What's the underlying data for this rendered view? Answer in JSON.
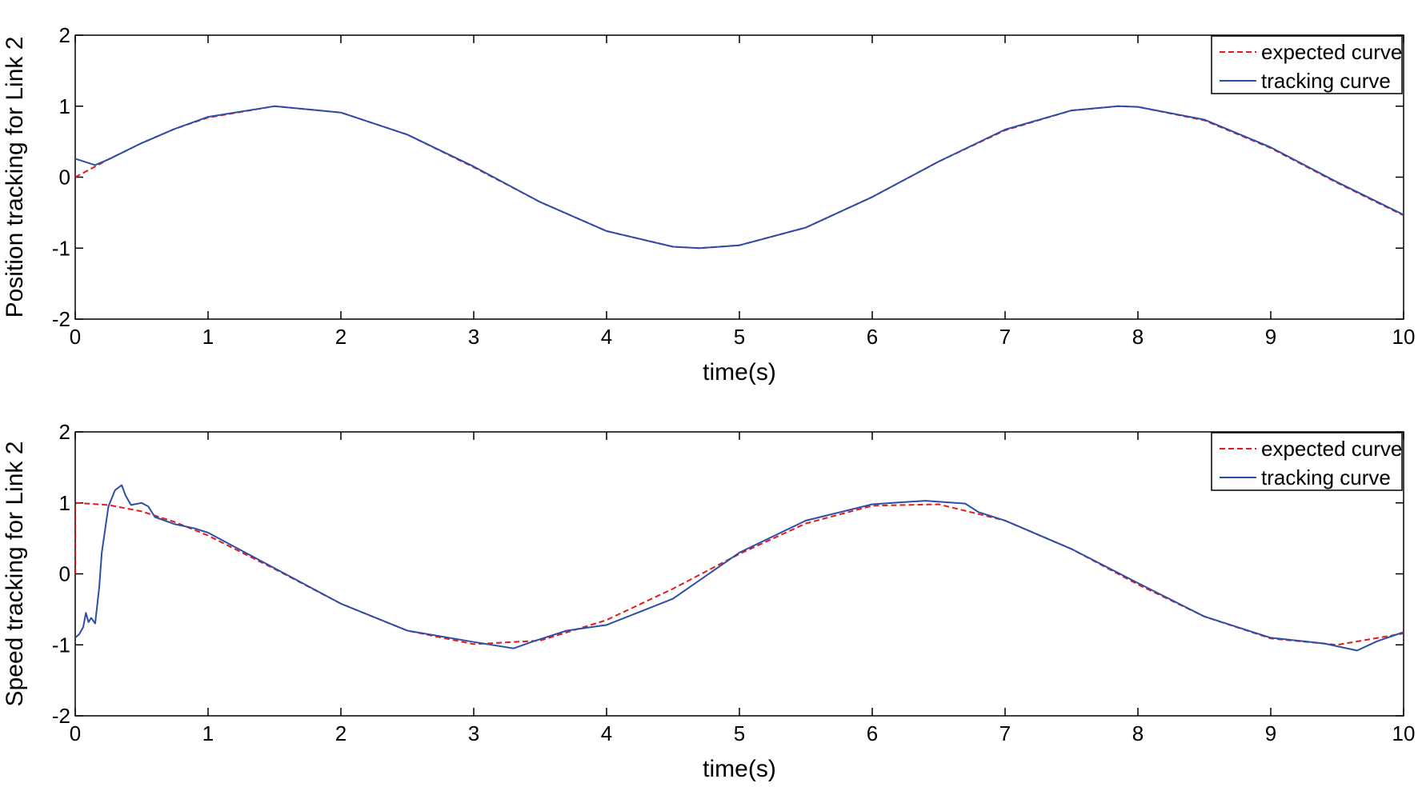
{
  "chart_data": [
    {
      "type": "line",
      "xlabel": "time(s)",
      "ylabel": "Position tracking for Link 2",
      "xlim": [
        0,
        10
      ],
      "ylim": [
        -2,
        2
      ],
      "xticks": [
        0,
        1,
        2,
        3,
        4,
        5,
        6,
        7,
        8,
        9,
        10
      ],
      "yticks": [
        -2,
        -1,
        0,
        1,
        2
      ],
      "grid": false,
      "legend_position": "top-right",
      "x": [
        0,
        0.15,
        0.25,
        0.5,
        0.75,
        1,
        1.5,
        2,
        2.5,
        3,
        3.5,
        4,
        4.5,
        4.7,
        5,
        5.5,
        6,
        6.5,
        7,
        7.5,
        7.85,
        8,
        8.5,
        9,
        9.5,
        10
      ],
      "series": [
        {
          "name": "expected curve",
          "color": "#e41a1c",
          "style": "dashed",
          "values": [
            0,
            0.15,
            0.25,
            0.48,
            0.68,
            0.84,
            1.0,
            0.91,
            0.6,
            0.14,
            -0.35,
            -0.76,
            -0.98,
            -1.0,
            -0.96,
            -0.71,
            -0.28,
            0.22,
            0.66,
            0.94,
            1.0,
            0.99,
            0.8,
            0.41,
            -0.08,
            -0.54
          ]
        },
        {
          "name": "tracking curve",
          "color": "#2b4ea8",
          "style": "solid",
          "values": [
            0.26,
            0.17,
            0.25,
            0.48,
            0.68,
            0.85,
            1.0,
            0.91,
            0.6,
            0.15,
            -0.35,
            -0.76,
            -0.98,
            -1.0,
            -0.96,
            -0.71,
            -0.28,
            0.22,
            0.67,
            0.94,
            1.0,
            0.99,
            0.81,
            0.42,
            -0.07,
            -0.53
          ]
        }
      ]
    },
    {
      "type": "line",
      "xlabel": "time(s)",
      "ylabel": "Speed tracking for Link 2",
      "xlim": [
        0,
        10
      ],
      "ylim": [
        -2,
        2
      ],
      "xticks": [
        0,
        1,
        2,
        3,
        4,
        5,
        6,
        7,
        8,
        9,
        10
      ],
      "yticks": [
        -2,
        -1,
        0,
        1,
        2
      ],
      "grid": false,
      "legend_position": "top-right",
      "series": [
        {
          "name": "expected curve",
          "color": "#e41a1c",
          "style": "dashed",
          "x": [
            0,
            0,
            0.01,
            0.25,
            0.5,
            0.75,
            1,
            1.5,
            2,
            2.5,
            3,
            3.5,
            4,
            4.5,
            5,
            5.5,
            6,
            6.5,
            7,
            7.5,
            8,
            8.5,
            9,
            9.5,
            10
          ],
          "values": [
            0,
            0.98,
            1.0,
            0.97,
            0.88,
            0.73,
            0.54,
            0.07,
            -0.42,
            -0.8,
            -0.99,
            -0.94,
            -0.65,
            -0.21,
            0.28,
            0.71,
            0.96,
            0.98,
            0.75,
            0.35,
            -0.15,
            -0.6,
            -0.91,
            -1.0,
            -0.84
          ]
        },
        {
          "name": "tracking curve",
          "color": "#2b4ea8",
          "style": "solid",
          "x": [
            0,
            0.03,
            0.06,
            0.08,
            0.1,
            0.12,
            0.15,
            0.18,
            0.2,
            0.25,
            0.3,
            0.35,
            0.38,
            0.42,
            0.5,
            0.55,
            0.6,
            0.75,
            0.9,
            1.0,
            1.5,
            2.0,
            2.5,
            3.0,
            3.3,
            3.45,
            3.7,
            4.0,
            4.5,
            5.0,
            5.5,
            6.0,
            6.4,
            6.7,
            6.8,
            7.0,
            7.5,
            8.0,
            8.5,
            9.0,
            9.4,
            9.65,
            9.8,
            10.0
          ],
          "values": [
            -0.9,
            -0.85,
            -0.75,
            -0.55,
            -0.68,
            -0.62,
            -0.7,
            -0.2,
            0.3,
            0.95,
            1.18,
            1.25,
            1.1,
            0.97,
            1.0,
            0.95,
            0.8,
            0.7,
            0.64,
            0.58,
            0.08,
            -0.42,
            -0.8,
            -0.96,
            -1.05,
            -0.95,
            -0.8,
            -0.72,
            -0.35,
            0.3,
            0.75,
            0.98,
            1.03,
            0.99,
            0.87,
            0.75,
            0.35,
            -0.13,
            -0.6,
            -0.9,
            -0.98,
            -1.08,
            -0.95,
            -0.82
          ]
        }
      ]
    }
  ]
}
